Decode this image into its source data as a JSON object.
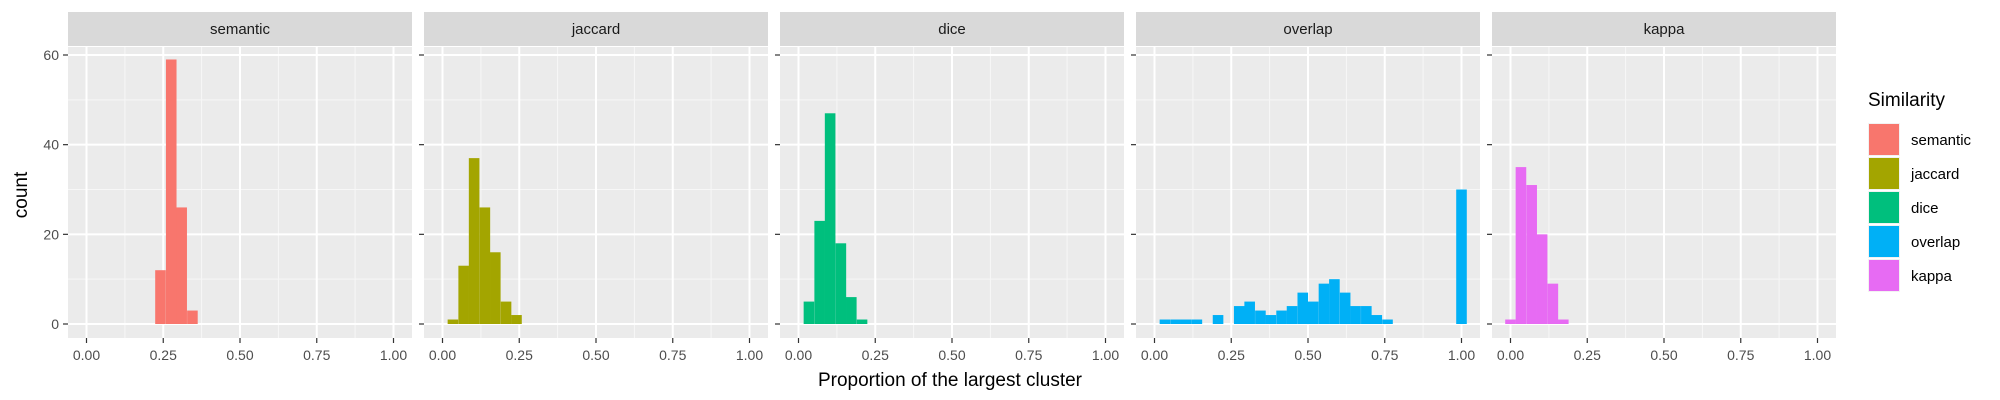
{
  "chart_data": {
    "type": "bar",
    "chart_kind": "faceted histogram",
    "xlabel": "Proportion of the largest cluster",
    "ylabel": "count",
    "xlim": [
      0,
      1
    ],
    "ylim": [
      0,
      62
    ],
    "x_ticks": [
      "0.00",
      "0.25",
      "0.50",
      "0.75",
      "1.00"
    ],
    "y_ticks": [
      "0",
      "20",
      "40",
      "60"
    ],
    "bin_width": 0.0345,
    "grid": true,
    "legend": {
      "title": "Similarity",
      "placement": "right",
      "entries": [
        {
          "label": "semantic",
          "color": "#F8766D"
        },
        {
          "label": "jaccard",
          "color": "#A3A500"
        },
        {
          "label": "dice",
          "color": "#00BF7D"
        },
        {
          "label": "overlap",
          "color": "#00B0F6"
        },
        {
          "label": "kappa",
          "color": "#E76BF3"
        }
      ]
    },
    "facets": [
      {
        "name": "semantic",
        "color": "#F8766D",
        "bins": [
          {
            "x": 0.241,
            "count": 12
          },
          {
            "x": 0.276,
            "count": 59
          },
          {
            "x": 0.31,
            "count": 26
          },
          {
            "x": 0.345,
            "count": 3
          }
        ]
      },
      {
        "name": "jaccard",
        "color": "#A3A500",
        "bins": [
          {
            "x": 0.034,
            "count": 1
          },
          {
            "x": 0.069,
            "count": 13
          },
          {
            "x": 0.103,
            "count": 37
          },
          {
            "x": 0.138,
            "count": 26
          },
          {
            "x": 0.172,
            "count": 16
          },
          {
            "x": 0.207,
            "count": 5
          },
          {
            "x": 0.241,
            "count": 2
          }
        ]
      },
      {
        "name": "dice",
        "color": "#00BF7D",
        "bins": [
          {
            "x": 0.034,
            "count": 5
          },
          {
            "x": 0.069,
            "count": 23
          },
          {
            "x": 0.103,
            "count": 47
          },
          {
            "x": 0.138,
            "count": 18
          },
          {
            "x": 0.172,
            "count": 6
          },
          {
            "x": 0.207,
            "count": 1
          }
        ]
      },
      {
        "name": "overlap",
        "color": "#00B0F6",
        "bins": [
          {
            "x": 0.034,
            "count": 1
          },
          {
            "x": 0.069,
            "count": 1
          },
          {
            "x": 0.103,
            "count": 1
          },
          {
            "x": 0.138,
            "count": 1
          },
          {
            "x": 0.207,
            "count": 2
          },
          {
            "x": 0.276,
            "count": 4
          },
          {
            "x": 0.31,
            "count": 5
          },
          {
            "x": 0.345,
            "count": 3
          },
          {
            "x": 0.379,
            "count": 2
          },
          {
            "x": 0.414,
            "count": 3
          },
          {
            "x": 0.448,
            "count": 4
          },
          {
            "x": 0.483,
            "count": 7
          },
          {
            "x": 0.517,
            "count": 5
          },
          {
            "x": 0.552,
            "count": 9
          },
          {
            "x": 0.586,
            "count": 10
          },
          {
            "x": 0.621,
            "count": 7
          },
          {
            "x": 0.655,
            "count": 4
          },
          {
            "x": 0.69,
            "count": 4
          },
          {
            "x": 0.724,
            "count": 2
          },
          {
            "x": 0.759,
            "count": 1
          },
          {
            "x": 1.0,
            "count": 30
          }
        ]
      },
      {
        "name": "kappa",
        "color": "#E76BF3",
        "bins": [
          {
            "x": 0.0,
            "count": 1
          },
          {
            "x": 0.034,
            "count": 35
          },
          {
            "x": 0.069,
            "count": 31
          },
          {
            "x": 0.103,
            "count": 20
          },
          {
            "x": 0.138,
            "count": 9
          },
          {
            "x": 0.172,
            "count": 1
          }
        ]
      }
    ]
  }
}
